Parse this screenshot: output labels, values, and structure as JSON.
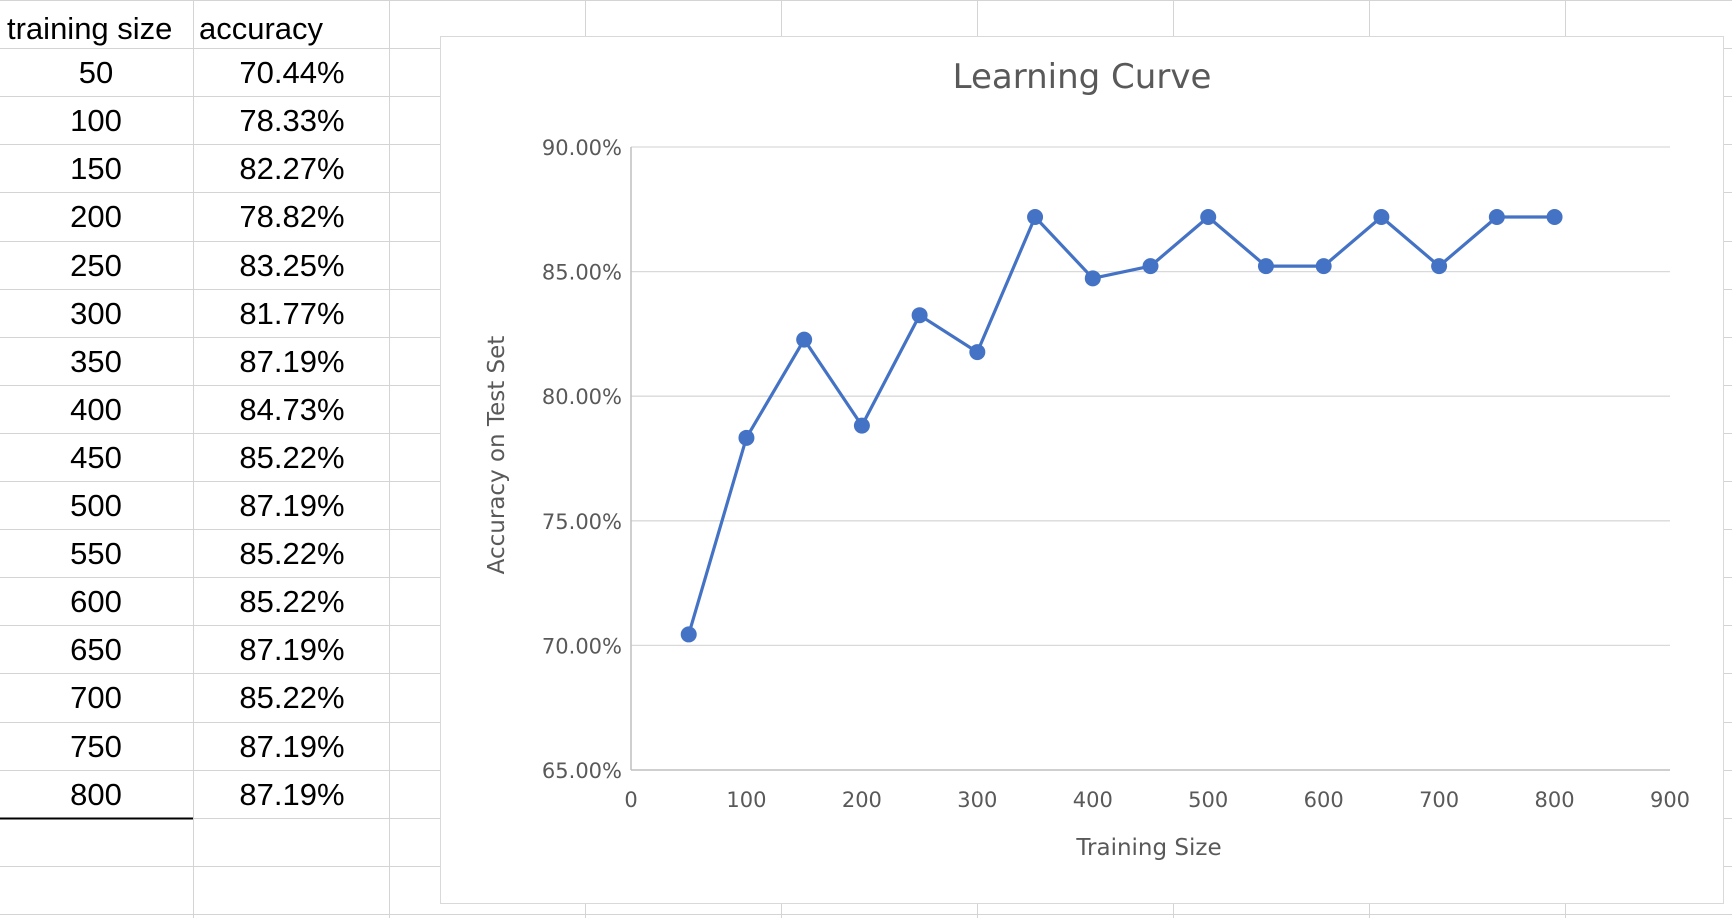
{
  "sheet": {
    "headers": [
      "training  size",
      "accuracy"
    ],
    "rows": [
      [
        "50",
        "70.44%"
      ],
      [
        "100",
        "78.33%"
      ],
      [
        "150",
        "82.27%"
      ],
      [
        "200",
        "78.82%"
      ],
      [
        "250",
        "83.25%"
      ],
      [
        "300",
        "81.77%"
      ],
      [
        "350",
        "87.19%"
      ],
      [
        "400",
        "84.73%"
      ],
      [
        "450",
        "85.22%"
      ],
      [
        "500",
        "87.19%"
      ],
      [
        "550",
        "85.22%"
      ],
      [
        "600",
        "85.22%"
      ],
      [
        "650",
        "87.19%"
      ],
      [
        "700",
        "85.22%"
      ],
      [
        "750",
        "87.19%"
      ],
      [
        "800",
        "87.19%"
      ]
    ]
  },
  "chart_data": {
    "type": "line",
    "title": "Learning Curve",
    "xlabel": "Training Size",
    "ylabel": "Accuracy on Test Set",
    "x": [
      50,
      100,
      150,
      200,
      250,
      300,
      350,
      400,
      450,
      500,
      550,
      600,
      650,
      700,
      750,
      800
    ],
    "series": [
      {
        "values": [
          70.44,
          78.33,
          82.27,
          78.82,
          83.25,
          81.77,
          87.19,
          84.73,
          85.22,
          87.19,
          85.22,
          85.22,
          87.19,
          85.22,
          87.19,
          87.19
        ],
        "color": "#4472c4"
      }
    ],
    "xlim": [
      0,
      900
    ],
    "ylim": [
      65,
      90
    ],
    "xticks": [
      "0",
      "100",
      "200",
      "300",
      "400",
      "500",
      "600",
      "700",
      "800",
      "900"
    ],
    "yticks": [
      "65.00%",
      "70.00%",
      "75.00%",
      "80.00%",
      "85.00%",
      "90.00%"
    ],
    "grid": true,
    "legend": "none"
  }
}
